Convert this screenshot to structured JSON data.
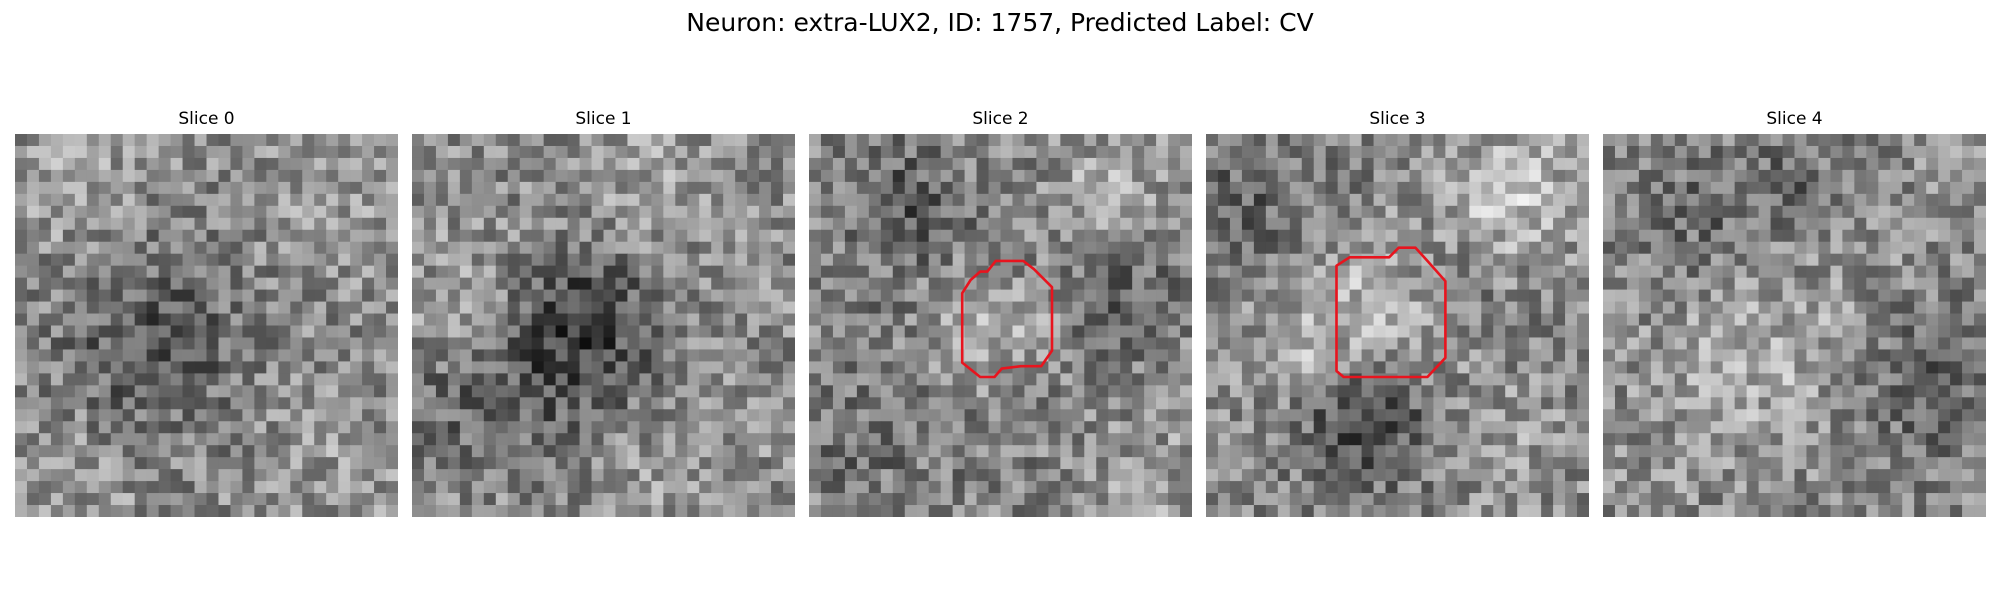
{
  "figure": {
    "title": "Neuron: extra-LUX2, ID: 1757, Predicted Label: CV"
  },
  "style": {
    "outline_color": "#e8141e",
    "background": "#ffffff",
    "colormap": "grayscale"
  },
  "panels": [
    {
      "title": "Slice 0",
      "has_outline": false
    },
    {
      "title": "Slice 1",
      "has_outline": false
    },
    {
      "title": "Slice 2",
      "has_outline": true
    },
    {
      "title": "Slice 3",
      "has_outline": true
    },
    {
      "title": "Slice 4",
      "has_outline": false
    }
  ]
}
